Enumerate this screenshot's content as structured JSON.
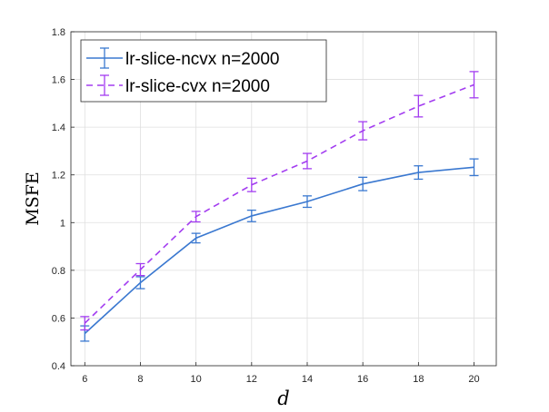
{
  "chart_data": {
    "type": "line",
    "xlabel": "d",
    "ylabel": "MSFE",
    "xlim": [
      5.5,
      20.8
    ],
    "ylim": [
      0.4,
      1.8
    ],
    "xticks": [
      6,
      8,
      10,
      12,
      14,
      16,
      18,
      20
    ],
    "yticks": [
      0.4,
      0.6,
      0.8,
      1,
      1.2,
      1.4,
      1.6,
      1.8
    ],
    "xtick_labels": [
      "6",
      "8",
      "10",
      "12",
      "14",
      "16",
      "18",
      "20"
    ],
    "ytick_labels": [
      "0.4",
      "0.6",
      "0.8",
      "1",
      "1.2",
      "1.4",
      "1.6",
      "1.8"
    ],
    "grid": true,
    "legend_position": "top-left",
    "x": [
      6,
      8,
      10,
      12,
      14,
      16,
      18,
      20
    ],
    "series": [
      {
        "name": "lr-slice-ncvx n=2000",
        "color": "#3a78d0",
        "line_style": "solid",
        "values": [
          0.535,
          0.748,
          0.935,
          1.028,
          1.088,
          1.162,
          1.21,
          1.232
        ],
        "errors": [
          0.032,
          0.025,
          0.02,
          0.024,
          0.024,
          0.028,
          0.028,
          0.035
        ]
      },
      {
        "name": "lr-slice-cvx n=2000",
        "color": "#a33df0",
        "line_style": "dashed",
        "values": [
          0.578,
          0.803,
          1.025,
          1.158,
          1.258,
          1.385,
          1.488,
          1.578
        ],
        "errors": [
          0.028,
          0.025,
          0.022,
          0.028,
          0.032,
          0.038,
          0.045,
          0.055
        ]
      }
    ]
  }
}
